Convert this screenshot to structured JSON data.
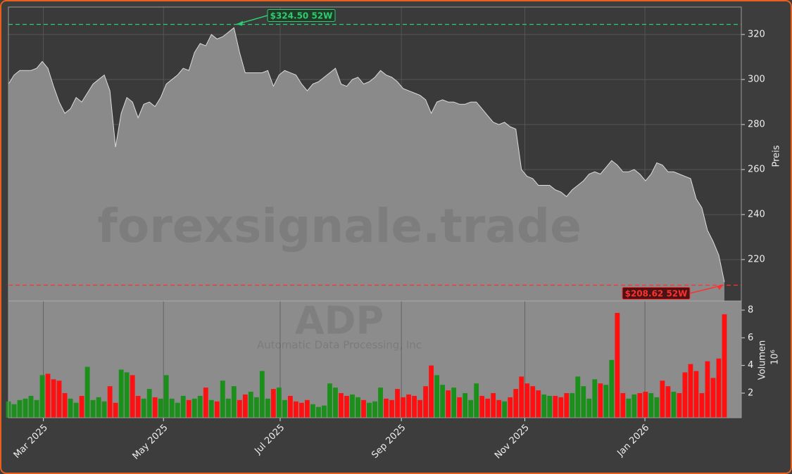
{
  "chart_data": {
    "type": "area",
    "title": "ADP",
    "subtitle": "Automatic Data Processing, Inc",
    "watermark": "forexsignale.trade",
    "ylabel": "Preis",
    "y2label": "Volumen",
    "y2offset": "10⁶",
    "xlim": [
      0,
      130
    ],
    "xticks": [
      {
        "value": 6.2,
        "label": "Mar 2025"
      },
      {
        "value": 27.5,
        "label": "May 2025"
      },
      {
        "value": 48.2,
        "label": "Jul 2025"
      },
      {
        "value": 69.7,
        "label": "Sep 2025"
      },
      {
        "value": 91.6,
        "label": "Nov 2025"
      },
      {
        "value": 112.9,
        "label": "Jan 2026"
      }
    ],
    "ylim": [
      201.6,
      332.2
    ],
    "yticks": [
      220,
      240,
      260,
      280,
      300,
      320
    ],
    "y2lim": [
      0.22,
      8.66
    ],
    "y2ticks": [
      2,
      4,
      6,
      8
    ],
    "grid": true,
    "price_color": "#8a8a8a",
    "up_color": "#1a8f1a",
    "down_color": "#ff1010",
    "series": [
      {
        "name": "Preis",
        "values": [
          298,
          302,
          304,
          304,
          304,
          305,
          308,
          305,
          297,
          290,
          285,
          287,
          292,
          290,
          294,
          298,
          300,
          302,
          295,
          270,
          285,
          292,
          290,
          283,
          289,
          290,
          288,
          292,
          298,
          300,
          302,
          305,
          304,
          312,
          316,
          315,
          320,
          318,
          319,
          321,
          323,
          312,
          303,
          303,
          303,
          303,
          304,
          297,
          302,
          304,
          303,
          302,
          298,
          295,
          298,
          299,
          301,
          303,
          305,
          298,
          297,
          300,
          301,
          298,
          299,
          301,
          304,
          302,
          301,
          299,
          296,
          295,
          294,
          293,
          291,
          285,
          290,
          291,
          290,
          290,
          289,
          289,
          290,
          290,
          287,
          284,
          281,
          280,
          281,
          279,
          278,
          260,
          257,
          256,
          253,
          253,
          253,
          251,
          250,
          248,
          251,
          253,
          255,
          258,
          259,
          258,
          261,
          264,
          262,
          259,
          259,
          260,
          258,
          255,
          258,
          263,
          262,
          259,
          259,
          258,
          257,
          256,
          247,
          243,
          233,
          228,
          222,
          210
        ]
      },
      {
        "name": "Volumen",
        "axis": "y2",
        "values": [
          1.4,
          1.2,
          1.5,
          1.6,
          1.8,
          1.5,
          3.3,
          3.4,
          3.0,
          2.9,
          2.0,
          1.6,
          1.3,
          1.8,
          3.9,
          1.5,
          1.7,
          1.4,
          2.5,
          1.3,
          3.7,
          3.5,
          3.3,
          1.8,
          1.6,
          2.3,
          1.7,
          1.6,
          3.3,
          1.6,
          1.3,
          1.8,
          1.5,
          1.6,
          1.8,
          2.4,
          1.5,
          1.4,
          2.9,
          1.6,
          2.5,
          1.5,
          1.9,
          2.1,
          1.7,
          3.6,
          1.6,
          2.3,
          2.4,
          1.5,
          1.8,
          1.4,
          1.3,
          1.5,
          1.2,
          1.0,
          1.1,
          2.7,
          2.4,
          2.0,
          1.8,
          1.9,
          1.7,
          1.5,
          1.3,
          1.4,
          2.4,
          1.6,
          1.5,
          2.3,
          1.7,
          1.9,
          1.8,
          1.5,
          2.5,
          4.0,
          3.3,
          2.6,
          2.2,
          2.4,
          1.7,
          2.0,
          1.5,
          2.7,
          1.8,
          1.6,
          2.0,
          1.5,
          1.4,
          1.7,
          2.3,
          3.2,
          2.7,
          2.5,
          2.2,
          1.9,
          1.8,
          1.8,
          1.7,
          2.0,
          2.0,
          3.2,
          2.5,
          1.6,
          3.0,
          2.7,
          2.6,
          4.4,
          7.8,
          2.0,
          1.6,
          1.9,
          2.0,
          2.1,
          2.0,
          1.7,
          2.9,
          2.5,
          2.1,
          2.0,
          3.5,
          4.1,
          3.6,
          2.0,
          4.3,
          3.1,
          4.5,
          7.7
        ]
      }
    ],
    "annotations": [
      {
        "text": "$324.50 52W",
        "value": 324.5,
        "color": "#2ecc71"
      },
      {
        "text": "$208.62 52W",
        "value": 208.62,
        "color": "#ff3030"
      }
    ]
  }
}
